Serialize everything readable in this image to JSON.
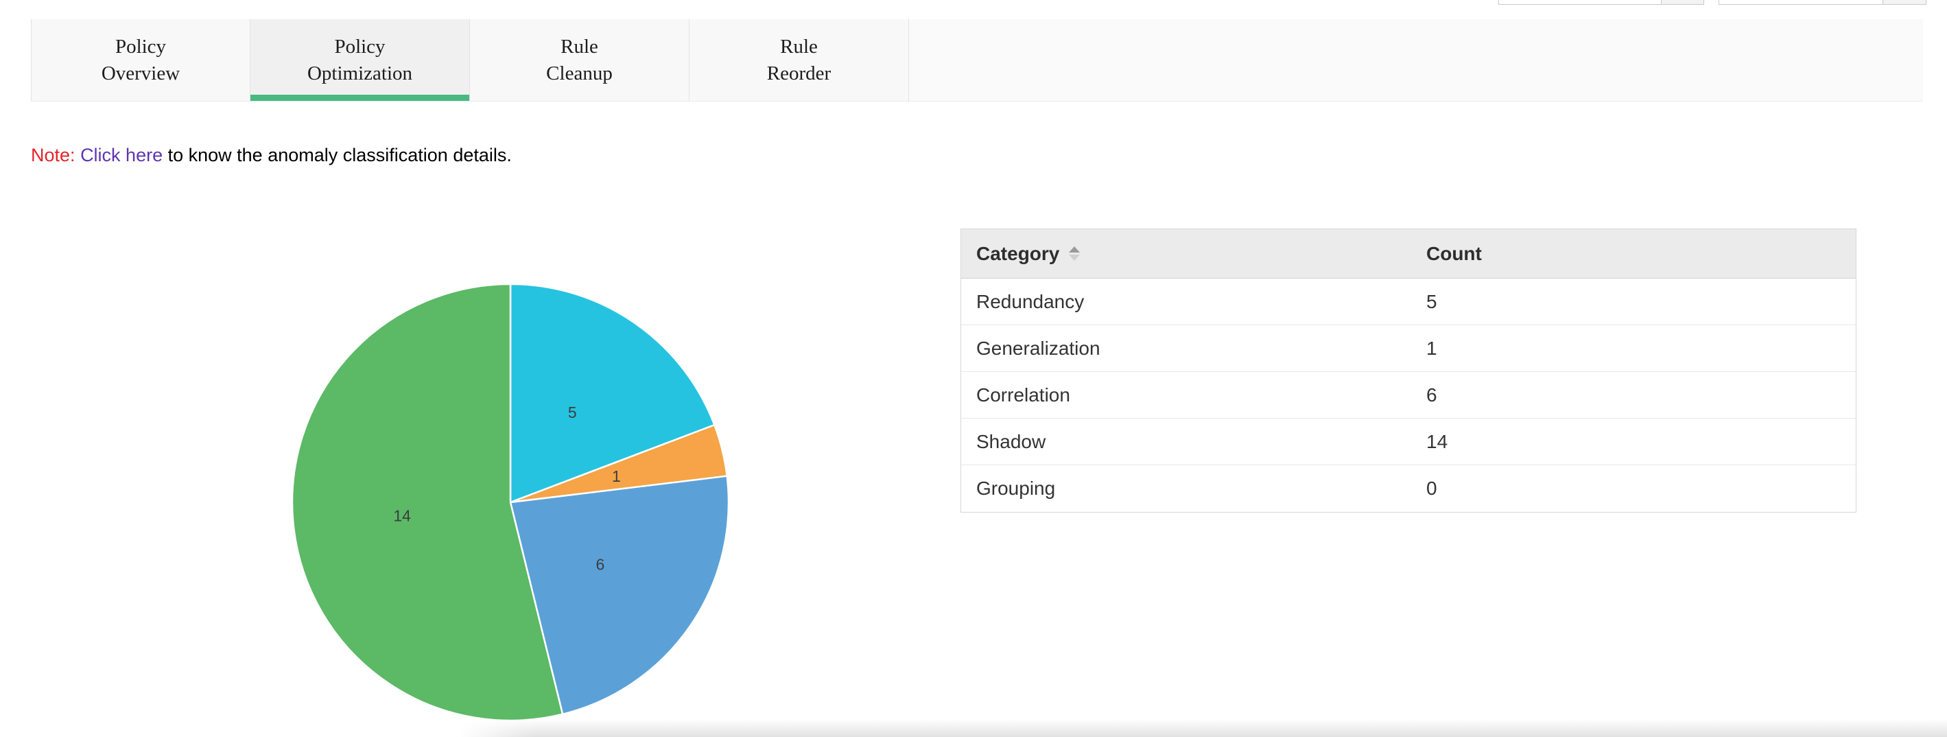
{
  "tabs": {
    "items": [
      {
        "label": "Policy\nOverview",
        "active": false
      },
      {
        "label": "Policy\nOptimization",
        "active": true
      },
      {
        "label": "Rule\nCleanup",
        "active": false
      },
      {
        "label": "Rule\nReorder",
        "active": false
      }
    ],
    "active_underline_color": "#47b981"
  },
  "note": {
    "prefix": "Note:",
    "link_text": "Click here",
    "suffix": " to know the anomaly classification details.",
    "prefix_color": "#e3242b",
    "link_color": "#5e35b1"
  },
  "chart_data": {
    "type": "pie",
    "title": "",
    "categories": [
      "Redundancy",
      "Generalization",
      "Correlation",
      "Shadow",
      "Grouping"
    ],
    "values": [
      5,
      1,
      6,
      14,
      0
    ],
    "colors": [
      "#26c3e0",
      "#f6a447",
      "#5ba1d8",
      "#5cb966",
      "#bdbdbd"
    ],
    "total": 26,
    "start_angle_deg": 0,
    "direction": "clockwise",
    "slice_labels": [
      "5",
      "1",
      "6",
      "14",
      ""
    ],
    "slice_label_color": "#3d3d3d",
    "label_radius_ratio": 0.5,
    "stroke_color": "#ffffff",
    "legend_position": "none"
  },
  "table": {
    "columns": [
      {
        "label": "Category",
        "sortable": true
      },
      {
        "label": "Count",
        "sortable": false
      }
    ],
    "rows": [
      {
        "category": "Redundancy",
        "count": "5"
      },
      {
        "category": "Generalization",
        "count": "1"
      },
      {
        "category": "Correlation",
        "count": "6"
      },
      {
        "category": "Shadow",
        "count": "14"
      },
      {
        "category": "Grouping",
        "count": "0"
      }
    ]
  },
  "top_right_partial_controls": {
    "count": 2,
    "kind": "cropped-dropdowns"
  }
}
